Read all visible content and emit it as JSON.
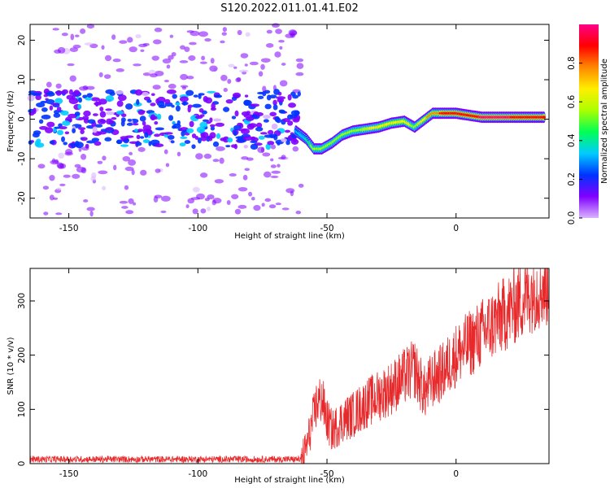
{
  "title": "S120.2022.011.01.41.E02",
  "chart_data": [
    {
      "type": "heatmap",
      "xlabel": "Height of straight line (km)",
      "ylabel": "Frequency (Hz)",
      "xlim": [
        -165,
        36
      ],
      "ylim": [
        -25,
        24
      ],
      "xticks": [
        -150,
        -100,
        -50,
        0
      ],
      "xtick_labels": [
        "-150",
        "-100",
        "-50",
        "0"
      ],
      "yticks": [
        -20,
        -10,
        0,
        10,
        20
      ],
      "ytick_labels": [
        "-20",
        "-10",
        "0",
        "10",
        "20"
      ],
      "colorbar": {
        "label": "Normalized spectral amplitude",
        "range": [
          0,
          1
        ],
        "ticks": [
          0.0,
          0.2,
          0.4,
          0.6,
          0.8
        ],
        "tick_labels": [
          "0.0",
          "0.2",
          "0.4",
          "0.6",
          "0.8"
        ],
        "colormap": [
          "#d9b3ff",
          "#8000ff",
          "#0033ff",
          "#00ccff",
          "#00ff55",
          "#aaff00",
          "#ffee00",
          "#ff8800",
          "#ff0000",
          "#ff0088"
        ]
      },
      "signal_track": {
        "x": [
          -62,
          -58,
          -55,
          -52,
          -48,
          -44,
          -40,
          -35,
          -30,
          -25,
          -20,
          -16,
          -13,
          -9,
          -5,
          0,
          10,
          20,
          30,
          34
        ],
        "freq_hz": [
          -3,
          -5,
          -7.5,
          -7.5,
          -6,
          -4,
          -3,
          -2.5,
          -2,
          -1,
          -0.5,
          -2,
          -0.5,
          1.5,
          1.5,
          1.5,
          0.5,
          0.5,
          0.5,
          0.5
        ],
        "amplitude": [
          0.3,
          0.4,
          0.55,
          0.55,
          0.5,
          0.5,
          0.55,
          0.6,
          0.65,
          0.7,
          0.7,
          0.55,
          0.65,
          0.8,
          0.85,
          0.85,
          0.95,
          0.95,
          0.9,
          0.85
        ]
      },
      "noise_region": {
        "x_range": [
          -165,
          -60
        ],
        "freq_range": [
          -24,
          24
        ],
        "amplitude": [
          0.05,
          0.3
        ]
      }
    },
    {
      "type": "line",
      "xlabel": "Height of straight line (km)",
      "ylabel": "SNR (10 * v/v)",
      "xlim": [
        -165,
        36
      ],
      "ylim": [
        0,
        360
      ],
      "xticks": [
        -150,
        -100,
        -50,
        0
      ],
      "xtick_labels": [
        "-150",
        "-100",
        "-50",
        "0"
      ],
      "yticks": [
        0,
        100,
        200,
        300
      ],
      "ytick_labels": [
        "0",
        "100",
        "200",
        "300"
      ],
      "color": "#e8292b",
      "envelope": {
        "x": [
          -165,
          -60,
          -58,
          -56,
          -54,
          -52,
          -50,
          -48,
          -46,
          -44,
          -40,
          -35,
          -30,
          -25,
          -20,
          -16,
          -14,
          -12,
          -10,
          -5,
          0,
          5,
          10,
          15,
          20,
          25,
          30,
          36
        ],
        "y": [
          8,
          8,
          30,
          70,
          110,
          120,
          80,
          60,
          70,
          80,
          90,
          110,
          125,
          140,
          160,
          175,
          150,
          130,
          150,
          170,
          200,
          220,
          240,
          260,
          280,
          300,
          320,
          330
        ]
      }
    }
  ]
}
